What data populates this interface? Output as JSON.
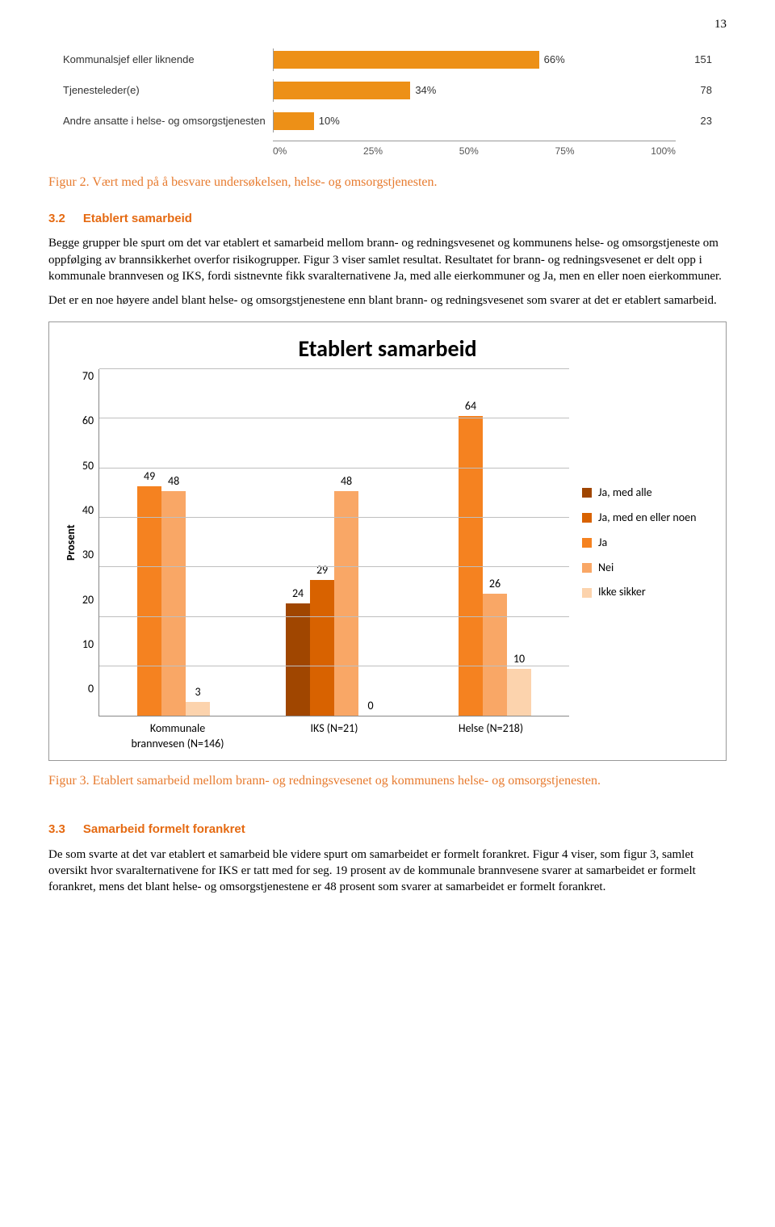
{
  "page_number": "13",
  "hbar": {
    "bar_color": "#ed9017",
    "rows": [
      {
        "label": "Kommunalsjef eller liknende",
        "pct": 66,
        "count": 151
      },
      {
        "label": "Tjenesteleder(e)",
        "pct": 34,
        "count": 78
      },
      {
        "label": "Andre ansatte i helse- og omsorgstjenesten",
        "pct": 10,
        "count": 23
      }
    ],
    "ticks": [
      "0%",
      "25%",
      "50%",
      "75%",
      "100%"
    ]
  },
  "caption1": "Figur 2. Vært med på å besvare undersøkelsen, helse- og omsorgstjenesten.",
  "section32": {
    "num": "3.2",
    "title": "Etablert samarbeid"
  },
  "para1": "Begge grupper ble spurt om det var etablert et samarbeid mellom brann- og redningsvesenet og kommunens helse- og omsorgstjeneste om oppfølging av brannsikkerhet overfor risikogrupper. Figur 3 viser samlet resultat. Resultatet for brann- og redningsvesenet er delt opp i kommunale brannvesen og IKS, fordi sistnevnte fikk svaralternativene Ja, med alle eierkommuner og Ja, men en eller noen eierkommuner.",
  "para2": "Det er en noe høyere andel blant helse- og omsorgstjenestene enn blant brann- og redningsvesenet som svarer at det er etablert samarbeid.",
  "chart": {
    "title": "Etablert samarbeid",
    "ylabel": "Prosent",
    "ymax": 70,
    "ytick_step": 10,
    "yticks": [
      70,
      60,
      50,
      40,
      30,
      20,
      10,
      0
    ],
    "grid_color": "#bfbfbf",
    "background": "#ffffff",
    "legend": [
      {
        "label": "Ja, med alle",
        "color": "#a04600"
      },
      {
        "label": "Ja, med en eller noen",
        "color": "#d86200"
      },
      {
        "label": "Ja",
        "color": "#f58220"
      },
      {
        "label": "Nei",
        "color": "#f9a766"
      },
      {
        "label": "Ikke sikker",
        "color": "#fcd3ad"
      }
    ],
    "groups": [
      {
        "label": "Kommunale brannvesen (N=146)",
        "bars": [
          {
            "value": 49,
            "color": "#f58220"
          },
          {
            "value": 48,
            "color": "#f9a766"
          },
          {
            "value": 3,
            "color": "#fcd3ad"
          }
        ]
      },
      {
        "label": "IKS (N=21)",
        "bars": [
          {
            "value": 24,
            "color": "#a04600"
          },
          {
            "value": 29,
            "color": "#d86200"
          },
          {
            "value": 48,
            "color": "#f9a766"
          },
          {
            "value": 0,
            "color": "#fcd3ad"
          }
        ]
      },
      {
        "label": "Helse (N=218)",
        "bars": [
          {
            "value": 64,
            "color": "#f58220"
          },
          {
            "value": 26,
            "color": "#f9a766"
          },
          {
            "value": 10,
            "color": "#fcd3ad"
          }
        ]
      }
    ]
  },
  "caption2": "Figur 3. Etablert samarbeid mellom brann- og redningsvesenet og kommunens helse- og omsorgstjenesten.",
  "section33": {
    "num": "3.3",
    "title": "Samarbeid formelt forankret"
  },
  "para3": "De som svarte at det var etablert et samarbeid ble videre spurt om samarbeidet er formelt forankret. Figur 4 viser, som figur 3, samlet oversikt hvor svaralternativene for IKS er tatt med for seg. 19 prosent av de kommunale brannvesene svarer at samarbeidet er formelt forankret, mens det blant helse- og omsorgstjenestene er 48 prosent som svarer at samarbeidet er formelt forankret."
}
